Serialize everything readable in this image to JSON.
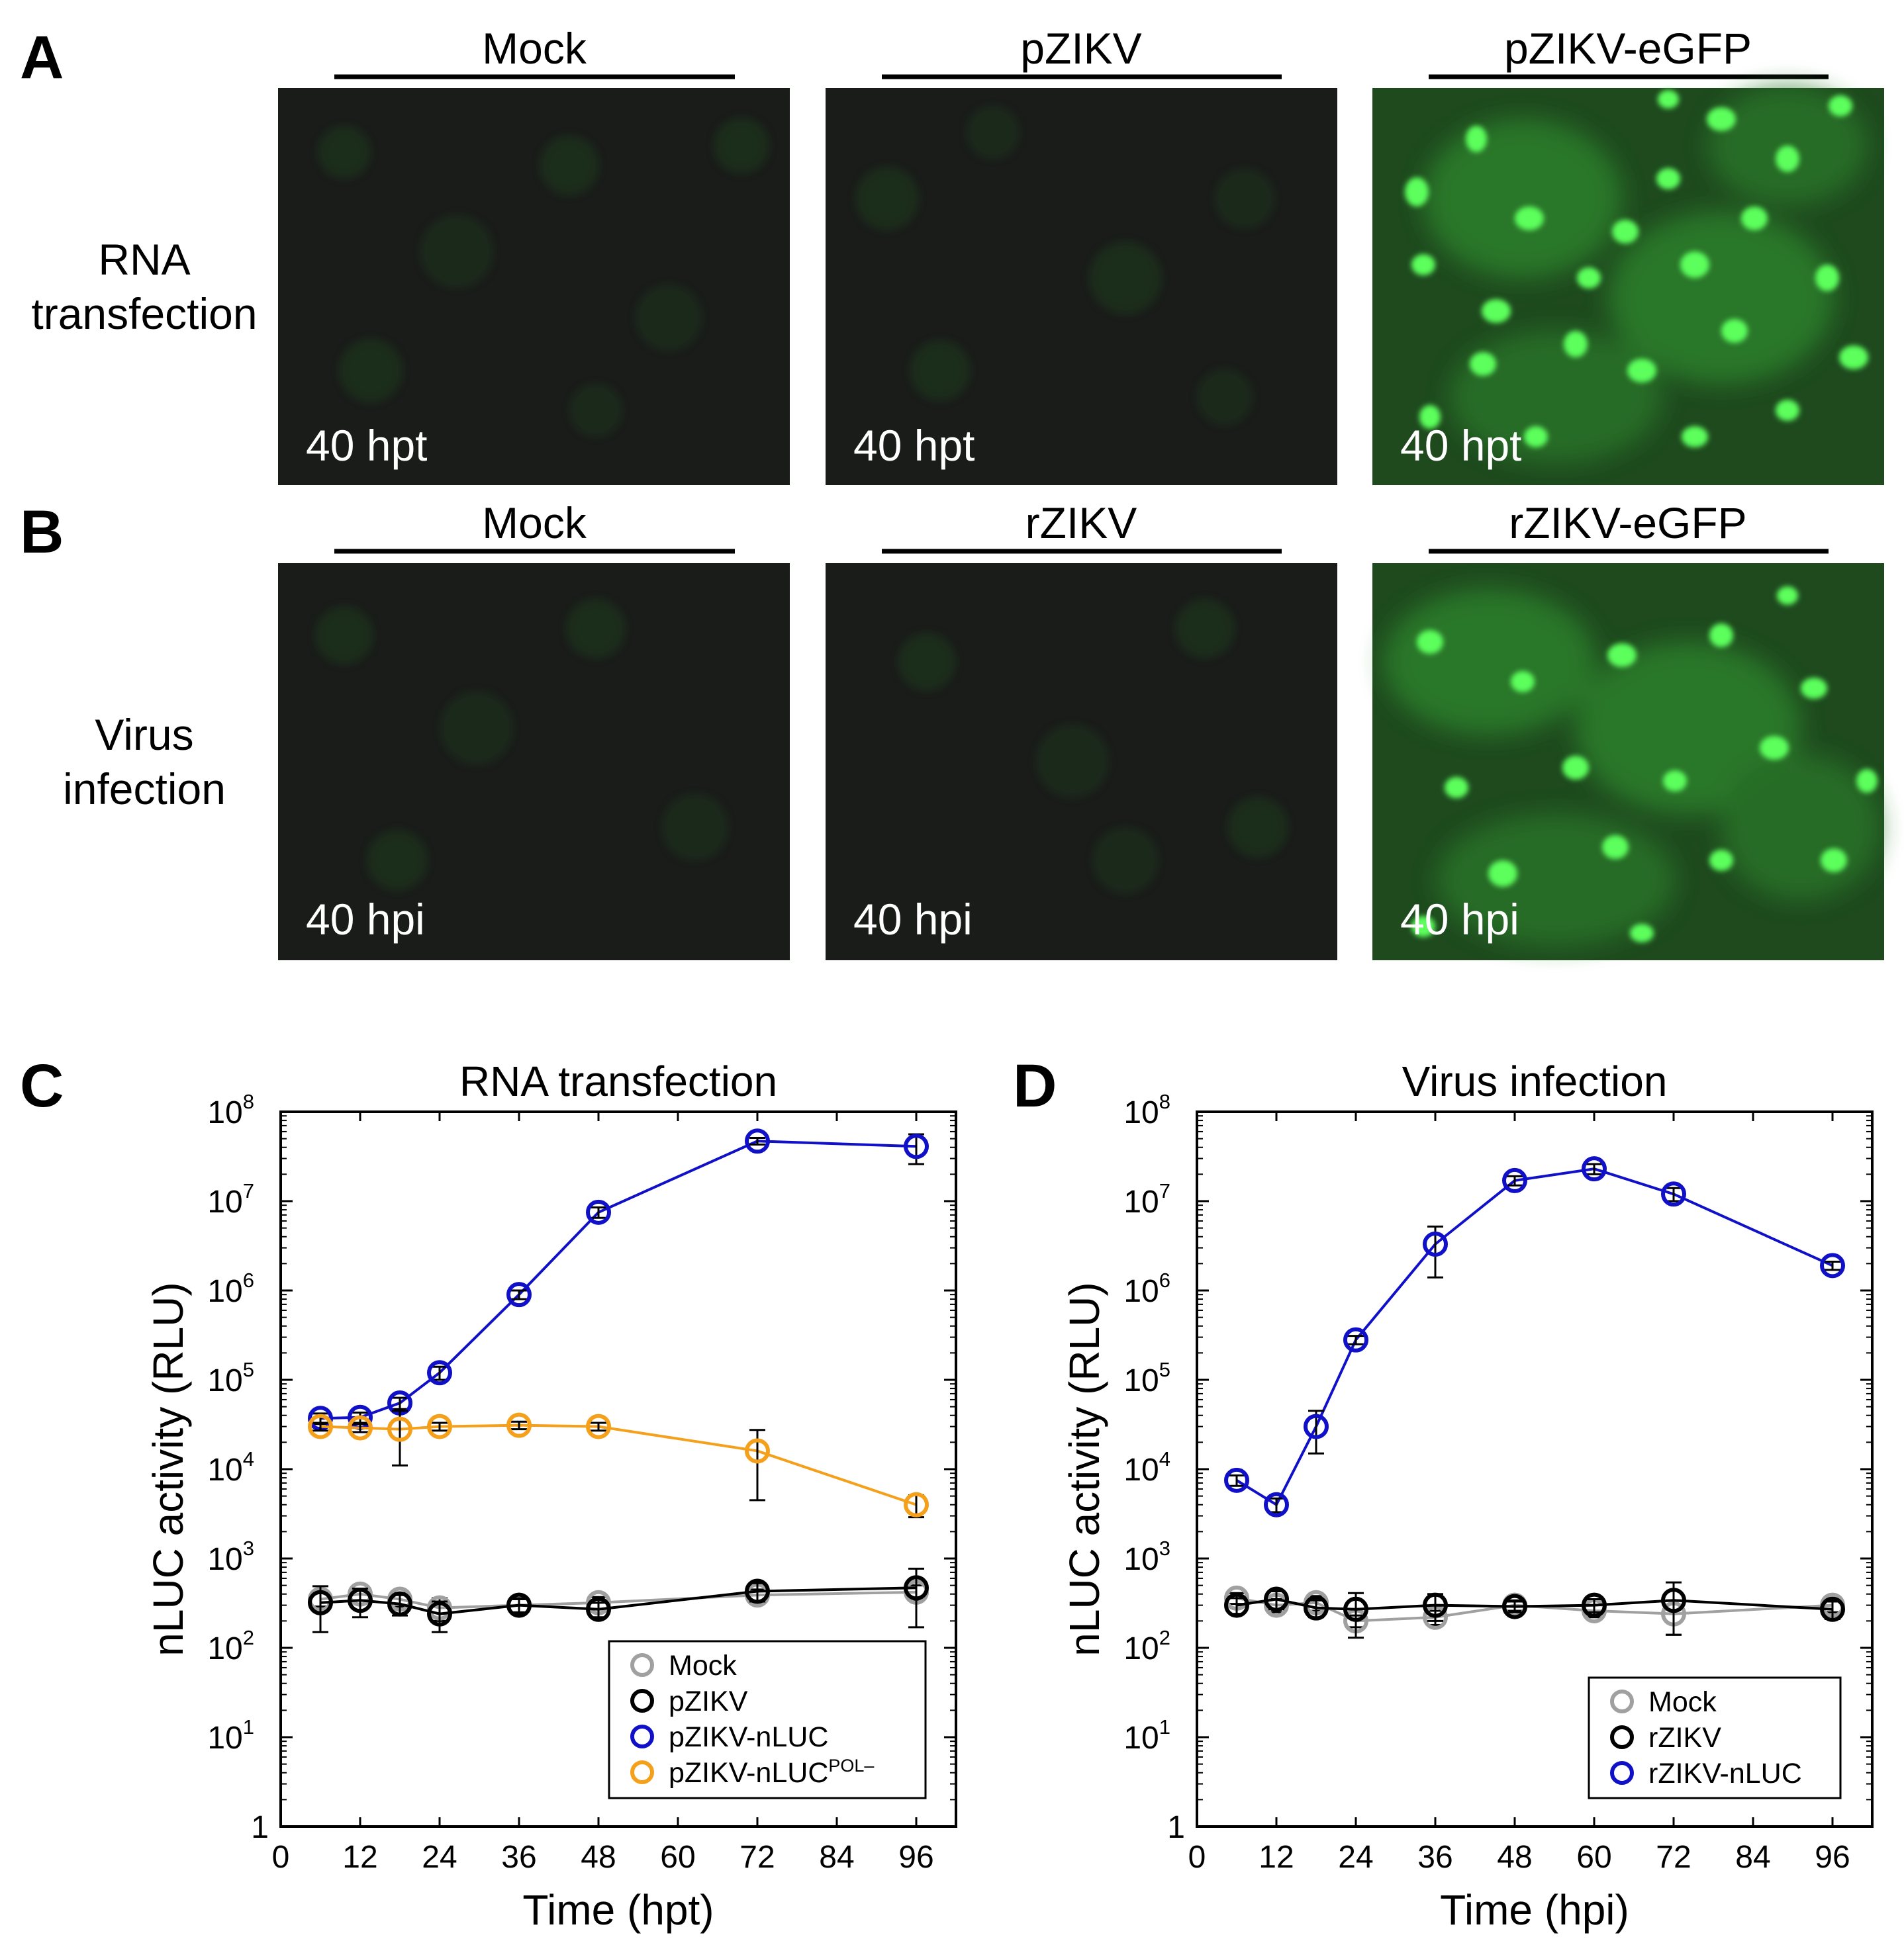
{
  "figure": {
    "panel_A": {
      "letter": "A",
      "row_label": [
        "RNA",
        "transfection"
      ],
      "columns": [
        {
          "label": "Mock",
          "time_label": "40 hpt",
          "signal": "none"
        },
        {
          "label": "pZIKV",
          "time_label": "40 hpt",
          "signal": "none"
        },
        {
          "label": "pZIKV-eGFP",
          "time_label": "40 hpt",
          "signal": "eGFP"
        }
      ]
    },
    "panel_B": {
      "letter": "B",
      "row_label": [
        "Virus",
        "infection"
      ],
      "columns": [
        {
          "label": "Mock",
          "time_label": "40 hpi",
          "signal": "none"
        },
        {
          "label": "rZIKV",
          "time_label": "40 hpi",
          "signal": "none"
        },
        {
          "label": "rZIKV-eGFP",
          "time_label": "40 hpi",
          "signal": "eGFP"
        }
      ]
    },
    "colors": {
      "micrograph_background": "#1a1c1a",
      "egfp_signal": "#3cf03c",
      "mock": "#a0a0a0",
      "plasmid_or_virus": "#000000",
      "nluc": "#1010c8",
      "nluc_pol_minus": "#f5a01a"
    }
  },
  "chart_data": [
    {
      "panel_letter": "C",
      "type": "line",
      "title": "RNA transfection",
      "xlabel": "Time (hpt)",
      "ylabel": "nLUC activity (RLU)",
      "xlim": [
        0,
        102
      ],
      "xticks": [
        0,
        12,
        24,
        36,
        48,
        60,
        72,
        84,
        96
      ],
      "yscale": "log",
      "ylim": [
        1,
        100000000
      ],
      "yticks": [
        {
          "base": "1",
          "exp": ""
        },
        {
          "base": "10",
          "exp": "1"
        },
        {
          "base": "10",
          "exp": "2"
        },
        {
          "base": "10",
          "exp": "3"
        },
        {
          "base": "10",
          "exp": "4"
        },
        {
          "base": "10",
          "exp": "5"
        },
        {
          "base": "10",
          "exp": "6"
        },
        {
          "base": "10",
          "exp": "7"
        },
        {
          "base": "10",
          "exp": "8"
        }
      ],
      "legend_position": "bottom-right",
      "series": [
        {
          "name": "Mock",
          "legend_sup": "",
          "color": "#a0a0a0",
          "x": [
            6,
            12,
            18,
            24,
            36,
            48,
            72,
            96
          ],
          "y": [
            350,
            400,
            350,
            280,
            300,
            320,
            390,
            420
          ],
          "err": [
            60,
            60,
            60,
            80,
            50,
            50,
            60,
            80
          ]
        },
        {
          "name": "pZIKV",
          "legend_sup": "",
          "color": "#000000",
          "x": [
            6,
            12,
            18,
            24,
            36,
            48,
            72,
            96
          ],
          "y": [
            320,
            340,
            310,
            240,
            300,
            270,
            430,
            470
          ],
          "err": [
            170,
            120,
            80,
            90,
            60,
            50,
            100,
            300
          ]
        },
        {
          "name": "pZIKV-nLUC",
          "legend_sup": "",
          "color": "#1010c8",
          "x": [
            6,
            12,
            18,
            24,
            36,
            48,
            72,
            96
          ],
          "y": [
            37000,
            38000,
            55000,
            120000,
            900000,
            7500000,
            47000000,
            41000000
          ],
          "err": [
            5000,
            5000,
            8000,
            20000,
            100000,
            1000000,
            4000000,
            15000000
          ]
        },
        {
          "name": "pZIKV-nLUC",
          "legend_sup": "POL–",
          "color": "#f5a01a",
          "x": [
            6,
            12,
            18,
            24,
            36,
            48,
            72,
            96
          ],
          "y": [
            30000,
            29000,
            28000,
            30000,
            31000,
            30000,
            16000,
            4000
          ],
          "err": [
            3000,
            3000,
            17000,
            3000,
            3000,
            3000,
            11500,
            1100
          ]
        }
      ]
    },
    {
      "panel_letter": "D",
      "type": "line",
      "title": "Virus infection",
      "xlabel": "Time (hpi)",
      "ylabel": "nLUC activity (RLU)",
      "xlim": [
        0,
        102
      ],
      "xticks": [
        0,
        12,
        24,
        36,
        48,
        60,
        72,
        84,
        96
      ],
      "yscale": "log",
      "ylim": [
        1,
        100000000
      ],
      "yticks": [
        {
          "base": "1",
          "exp": ""
        },
        {
          "base": "10",
          "exp": "1"
        },
        {
          "base": "10",
          "exp": "2"
        },
        {
          "base": "10",
          "exp": "3"
        },
        {
          "base": "10",
          "exp": "4"
        },
        {
          "base": "10",
          "exp": "5"
        },
        {
          "base": "10",
          "exp": "6"
        },
        {
          "base": "10",
          "exp": "7"
        },
        {
          "base": "10",
          "exp": "8"
        }
      ],
      "legend_position": "bottom-right",
      "series": [
        {
          "name": "Mock",
          "legend_sup": "",
          "color": "#a0a0a0",
          "x": [
            6,
            12,
            18,
            24,
            36,
            48,
            60,
            72,
            96
          ],
          "y": [
            360,
            300,
            320,
            200,
            220,
            300,
            260,
            240,
            300
          ],
          "err": [
            50,
            50,
            60,
            30,
            40,
            40,
            40,
            100,
            50
          ]
        },
        {
          "name": "rZIKV",
          "legend_sup": "",
          "color": "#000000",
          "x": [
            6,
            12,
            18,
            24,
            36,
            48,
            60,
            72,
            96
          ],
          "y": [
            300,
            350,
            280,
            270,
            300,
            290,
            300,
            340,
            270
          ],
          "err": [
            60,
            80,
            60,
            140,
            100,
            40,
            50,
            200,
            60
          ]
        },
        {
          "name": "rZIKV-nLUC",
          "legend_sup": "",
          "color": "#1010c8",
          "x": [
            6,
            12,
            18,
            24,
            36,
            48,
            60,
            72,
            96
          ],
          "y": [
            7500,
            4000,
            30000,
            280000,
            3300000,
            17000000,
            23000000,
            12000000,
            1900000
          ],
          "err": [
            1000,
            700,
            15000,
            30000,
            1900000,
            2000000,
            3000000,
            2000000,
            200000
          ]
        }
      ]
    }
  ]
}
